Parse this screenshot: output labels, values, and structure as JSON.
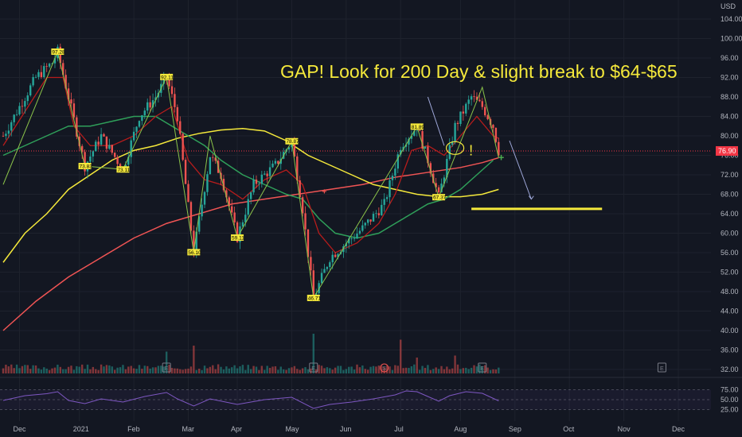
{
  "chart_data": {
    "type": "candlestick",
    "currency": "USD",
    "annotation": "GAP! Look for 200 Day & slight break to $64-$65",
    "current_price": "76.90",
    "y_ticks": [
      "104.00",
      "100.00",
      "96.00",
      "92.00",
      "88.00",
      "84.00",
      "80.00",
      "76.00",
      "72.00",
      "68.00",
      "64.00",
      "60.00",
      "56.00",
      "52.00",
      "48.00",
      "44.00",
      "40.00",
      "36.00",
      "32.00"
    ],
    "x_ticks": [
      "Dec",
      "2021",
      "Feb",
      "Mar",
      "Apr",
      "May",
      "Jun",
      "Jul",
      "Aug",
      "Sep",
      "Oct",
      "Nov",
      "Dec"
    ],
    "rsi_ticks": [
      "75.00",
      "50.00",
      "25.00"
    ],
    "price_range": [
      32,
      106
    ],
    "marked_levels": [
      {
        "label": "97.28",
        "day": 10,
        "price": 97.3
      },
      {
        "label": "73.83",
        "day": 15,
        "price": 73.8
      },
      {
        "label": "73.11",
        "day": 22,
        "price": 73.1
      },
      {
        "label": "92.11",
        "day": 30,
        "price": 92.1
      },
      {
        "label": "56.10",
        "day": 35,
        "price": 56.1
      },
      {
        "label": "59.11",
        "day": 43,
        "price": 59.1
      },
      {
        "label": "78.87",
        "day": 53,
        "price": 78.9
      },
      {
        "label": "46.71",
        "day": 57,
        "price": 46.7
      },
      {
        "label": "81.89",
        "day": 76,
        "price": 81.9
      },
      {
        "label": "67.37",
        "day": 80,
        "price": 67.4
      }
    ],
    "target_level": {
      "price": 65,
      "from_day": 86,
      "to_day": 110
    },
    "price_path": [
      [
        0,
        80
      ],
      [
        3,
        86
      ],
      [
        6,
        92
      ],
      [
        9,
        95
      ],
      [
        10,
        97.3
      ],
      [
        12,
        88
      ],
      [
        15,
        73.8
      ],
      [
        18,
        80
      ],
      [
        22,
        73.1
      ],
      [
        25,
        84
      ],
      [
        28,
        88
      ],
      [
        30,
        92.1
      ],
      [
        32,
        84
      ],
      [
        35,
        56.1
      ],
      [
        38,
        76
      ],
      [
        40,
        72
      ],
      [
        43,
        59.1
      ],
      [
        46,
        70
      ],
      [
        50,
        74
      ],
      [
        53,
        78.9
      ],
      [
        55,
        65
      ],
      [
        57,
        46.7
      ],
      [
        60,
        55
      ],
      [
        63,
        58
      ],
      [
        66,
        61
      ],
      [
        70,
        66
      ],
      [
        73,
        78
      ],
      [
        76,
        81.9
      ],
      [
        78,
        75
      ],
      [
        80,
        67.4
      ],
      [
        83,
        82
      ],
      [
        86,
        88
      ],
      [
        88,
        86
      ],
      [
        90,
        82
      ],
      [
        91,
        76.9
      ]
    ],
    "ma_fast": [
      [
        0,
        78
      ],
      [
        4,
        85
      ],
      [
        8,
        92
      ],
      [
        11,
        92
      ],
      [
        13,
        82
      ],
      [
        16,
        78
      ],
      [
        20,
        78
      ],
      [
        24,
        80
      ],
      [
        28,
        84
      ],
      [
        31,
        86
      ],
      [
        34,
        75
      ],
      [
        37,
        71
      ],
      [
        40,
        70
      ],
      [
        44,
        67
      ],
      [
        48,
        71
      ],
      [
        52,
        73
      ],
      [
        55,
        70
      ],
      [
        58,
        60
      ],
      [
        61,
        56
      ],
      [
        65,
        58
      ],
      [
        69,
        62
      ],
      [
        72,
        68
      ],
      [
        75,
        77
      ],
      [
        78,
        78
      ],
      [
        81,
        76
      ],
      [
        84,
        80
      ],
      [
        87,
        84
      ],
      [
        90,
        80
      ],
      [
        91,
        79.5
      ]
    ],
    "ma_50": [
      [
        0,
        76
      ],
      [
        4,
        78
      ],
      [
        8,
        80
      ],
      [
        12,
        82
      ],
      [
        16,
        82
      ],
      [
        20,
        83
      ],
      [
        24,
        84
      ],
      [
        28,
        84
      ],
      [
        31,
        82
      ],
      [
        34,
        80
      ],
      [
        37,
        78
      ],
      [
        40,
        75
      ],
      [
        44,
        72
      ],
      [
        48,
        70
      ],
      [
        52,
        68
      ],
      [
        55,
        67
      ],
      [
        58,
        63
      ],
      [
        61,
        60
      ],
      [
        65,
        59
      ],
      [
        69,
        60
      ],
      [
        72,
        62
      ],
      [
        75,
        64
      ],
      [
        78,
        66
      ],
      [
        81,
        67
      ],
      [
        84,
        69
      ],
      [
        87,
        72
      ],
      [
        90,
        75
      ]
    ],
    "ma_100": [
      [
        0,
        54
      ],
      [
        4,
        60
      ],
      [
        8,
        64
      ],
      [
        12,
        69
      ],
      [
        16,
        72
      ],
      [
        20,
        75
      ],
      [
        24,
        77
      ],
      [
        28,
        78
      ],
      [
        32,
        79.5
      ],
      [
        36,
        80.5
      ],
      [
        40,
        81.2
      ],
      [
        44,
        81.5
      ],
      [
        48,
        81
      ],
      [
        52,
        79
      ],
      [
        56,
        76
      ],
      [
        60,
        74
      ],
      [
        64,
        72
      ],
      [
        68,
        70
      ],
      [
        72,
        69
      ],
      [
        76,
        68
      ],
      [
        80,
        67.5
      ],
      [
        84,
        67.5
      ],
      [
        88,
        68
      ],
      [
        91,
        69
      ]
    ],
    "ma_200": [
      [
        0,
        40
      ],
      [
        6,
        46
      ],
      [
        12,
        51
      ],
      [
        18,
        55
      ],
      [
        24,
        59
      ],
      [
        30,
        62
      ],
      [
        36,
        64
      ],
      [
        42,
        66
      ],
      [
        48,
        67
      ],
      [
        54,
        68
      ],
      [
        60,
        69
      ],
      [
        66,
        70
      ],
      [
        72,
        71.5
      ],
      [
        78,
        72.5
      ],
      [
        84,
        73.5
      ],
      [
        88,
        74.5
      ],
      [
        91,
        75.5
      ]
    ],
    "trend_lines": [
      [
        [
          0,
          70
        ],
        [
          10,
          97.3
        ],
        [
          15,
          73.8
        ],
        [
          22,
          73.1
        ],
        [
          30,
          92.1
        ],
        [
          35,
          56.1
        ],
        [
          38,
          80
        ],
        [
          43,
          59.1
        ],
        [
          53,
          78.9
        ],
        [
          57,
          46.7
        ],
        [
          76,
          81.9
        ],
        [
          80,
          67.4
        ],
        [
          88,
          90
        ],
        [
          91,
          75.5
        ]
      ]
    ],
    "volume_spikes": [
      {
        "day": 30,
        "v": 0.55
      },
      {
        "day": 35,
        "v": 0.7
      },
      {
        "day": 57,
        "v": 1.0
      },
      {
        "day": 73,
        "v": 0.85
      },
      {
        "day": 76,
        "v": 0.4
      },
      {
        "day": 83,
        "v": 0.45
      }
    ],
    "event_markers": [
      {
        "day": 30,
        "type": "E"
      },
      {
        "day": 57,
        "type": "E"
      },
      {
        "day": 70,
        "type": "S"
      },
      {
        "day": 88,
        "type": "E"
      },
      {
        "day": 121,
        "type": "E"
      }
    ],
    "rsi_values": [
      [
        0,
        48
      ],
      [
        4,
        60
      ],
      [
        8,
        65
      ],
      [
        10,
        70
      ],
      [
        12,
        48
      ],
      [
        15,
        40
      ],
      [
        18,
        52
      ],
      [
        22,
        44
      ],
      [
        26,
        58
      ],
      [
        30,
        68
      ],
      [
        32,
        52
      ],
      [
        35,
        34
      ],
      [
        38,
        52
      ],
      [
        43,
        38
      ],
      [
        48,
        50
      ],
      [
        53,
        56
      ],
      [
        57,
        28
      ],
      [
        60,
        38
      ],
      [
        64,
        44
      ],
      [
        68,
        52
      ],
      [
        72,
        62
      ],
      [
        74,
        72
      ],
      [
        76,
        70
      ],
      [
        78,
        58
      ],
      [
        80,
        46
      ],
      [
        82,
        60
      ],
      [
        85,
        70
      ],
      [
        88,
        66
      ],
      [
        91,
        47
      ]
    ]
  }
}
